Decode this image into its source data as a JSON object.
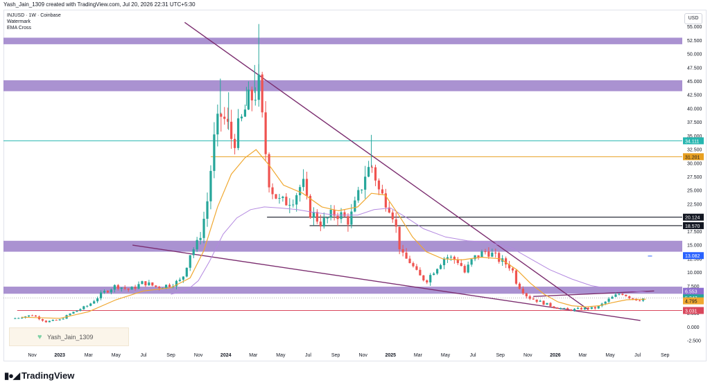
{
  "header": {
    "caption": "Yash_Jain_1309 created with TradingView.com, Jul 20, 2026 22:31 UTC+5:30"
  },
  "legend": {
    "symbol": "INJUSD · 1W · Coinbase",
    "line2": "Watermark",
    "line3": "EMA Cross"
  },
  "currency_button": "USD",
  "watermark": {
    "label": "Yash_Jain_1309",
    "icon": "green-heart-icon"
  },
  "footer": {
    "logo_icon": "tradingview-logo-icon",
    "brand": "TradingView"
  },
  "colors": {
    "zone": "#9b7fc9",
    "trendline": "#7b2d6f",
    "ema_fast": "#f0a830",
    "ema_slow": "#b388e0",
    "teal": "#26b6b0",
    "orange": "#e8a021",
    "support": "#d9475c",
    "up": "#26a69a",
    "down": "#ef5350"
  },
  "chart_data": {
    "type": "candlestick",
    "symbol": "INJUSD",
    "interval": "1W",
    "exchange": "Coinbase",
    "y_ticks": [
      "55.000",
      "52.500",
      "50.000",
      "47.500",
      "45.000",
      "42.500",
      "40.000",
      "37.500",
      "35.000",
      "32.500",
      "30.000",
      "27.500",
      "25.000",
      "22.500",
      "20.000",
      "17.500",
      "15.000",
      "12.500",
      "10.000",
      "7.500",
      "5.000",
      "2.500",
      "0.000",
      "-2.500"
    ],
    "y_range": [
      -3.5,
      58
    ],
    "x_labels": [
      {
        "label": "Nov",
        "t": 0.3
      },
      {
        "label": "2023",
        "t": 2.3
      },
      {
        "label": "Mar",
        "t": 4.4
      },
      {
        "label": "May",
        "t": 6.4
      },
      {
        "label": "Jul",
        "t": 8.4
      },
      {
        "label": "Sep",
        "t": 10.4
      },
      {
        "label": "Nov",
        "t": 12.4
      },
      {
        "label": "2024",
        "t": 14.4
      },
      {
        "label": "Mar",
        "t": 16.4
      },
      {
        "label": "May",
        "t": 18.4
      },
      {
        "label": "Jul",
        "t": 20.4
      },
      {
        "label": "Sep",
        "t": 22.4
      },
      {
        "label": "Nov",
        "t": 24.4
      },
      {
        "label": "2025",
        "t": 26.4
      },
      {
        "label": "Mar",
        "t": 28.4
      },
      {
        "label": "May",
        "t": 30.4
      },
      {
        "label": "Jul",
        "t": 32.4
      },
      {
        "label": "Sep",
        "t": 34.4
      },
      {
        "label": "Nov",
        "t": 36.4
      },
      {
        "label": "2026",
        "t": 38.4
      },
      {
        "label": "Mar",
        "t": 40.4
      },
      {
        "label": "May",
        "t": 42.4
      },
      {
        "label": "Jul",
        "t": 44.4
      },
      {
        "label": "Sep",
        "t": 46.4
      }
    ],
    "x_range": [
      -1.8,
      47.6
    ],
    "price_path": [
      {
        "t": -1.2,
        "v": 1.5
      },
      {
        "t": 0.3,
        "v": 2.2
      },
      {
        "t": 1.3,
        "v": 1.0
      },
      {
        "t": 2.3,
        "v": 1.3
      },
      {
        "t": 3.1,
        "v": 2.5
      },
      {
        "t": 4.4,
        "v": 4.0
      },
      {
        "t": 5.4,
        "v": 6.2
      },
      {
        "t": 6.4,
        "v": 7.6
      },
      {
        "t": 7.4,
        "v": 6.8
      },
      {
        "t": 8.4,
        "v": 8.2
      },
      {
        "t": 9.4,
        "v": 7.3
      },
      {
        "t": 10.4,
        "v": 7.8
      },
      {
        "t": 11.2,
        "v": 8.6
      },
      {
        "t": 11.8,
        "v": 13.5
      },
      {
        "t": 12.4,
        "v": 15.5
      },
      {
        "t": 13.0,
        "v": 22.0
      },
      {
        "t": 13.5,
        "v": 33.5
      },
      {
        "t": 14.0,
        "v": 39.0
      },
      {
        "t": 14.4,
        "v": 37.5
      },
      {
        "t": 14.9,
        "v": 34.0
      },
      {
        "t": 15.4,
        "v": 36.5
      },
      {
        "t": 15.9,
        "v": 40.5
      },
      {
        "t": 16.4,
        "v": 42.5
      },
      {
        "t": 16.8,
        "v": 44.0
      },
      {
        "t": 17.2,
        "v": 34.0
      },
      {
        "t": 17.6,
        "v": 26.0
      },
      {
        "t": 18.4,
        "v": 22.5
      },
      {
        "t": 19.4,
        "v": 24.0
      },
      {
        "t": 20.0,
        "v": 26.5
      },
      {
        "t": 20.4,
        "v": 21.5
      },
      {
        "t": 21.4,
        "v": 19.0
      },
      {
        "t": 22.4,
        "v": 21.0
      },
      {
        "t": 23.4,
        "v": 19.5
      },
      {
        "t": 24.0,
        "v": 23.5
      },
      {
        "t": 24.6,
        "v": 28.5
      },
      {
        "t": 25.1,
        "v": 29.5
      },
      {
        "t": 25.6,
        "v": 24.5
      },
      {
        "t": 26.2,
        "v": 23.0
      },
      {
        "t": 26.6,
        "v": 20.5
      },
      {
        "t": 27.2,
        "v": 13.0
      },
      {
        "t": 27.8,
        "v": 12.0
      },
      {
        "t": 28.4,
        "v": 9.5
      },
      {
        "t": 29.0,
        "v": 8.5
      },
      {
        "t": 29.6,
        "v": 10.5
      },
      {
        "t": 30.4,
        "v": 13.0
      },
      {
        "t": 31.4,
        "v": 12.0
      },
      {
        "t": 31.8,
        "v": 10.0
      },
      {
        "t": 32.4,
        "v": 12.5
      },
      {
        "t": 33.4,
        "v": 14.0
      },
      {
        "t": 34.4,
        "v": 12.2
      },
      {
        "t": 35.2,
        "v": 11.0
      },
      {
        "t": 35.6,
        "v": 8.0
      },
      {
        "t": 36.4,
        "v": 5.5
      },
      {
        "t": 37.4,
        "v": 4.5
      },
      {
        "t": 38.4,
        "v": 3.6
      },
      {
        "t": 39.4,
        "v": 3.1
      },
      {
        "t": 40.4,
        "v": 3.4
      },
      {
        "t": 41.4,
        "v": 3.5
      },
      {
        "t": 42.4,
        "v": 5.2
      },
      {
        "t": 43.2,
        "v": 6.3
      },
      {
        "t": 43.8,
        "v": 5.5
      },
      {
        "t": 44.4,
        "v": 5.0
      },
      {
        "t": 45.0,
        "v": 5.35
      }
    ],
    "spikes": [
      {
        "t": 16.8,
        "high": 55.5
      },
      {
        "t": 16.5,
        "high": 48.0
      },
      {
        "t": 14.0,
        "high": 45.5
      },
      {
        "t": 25.0,
        "high": 35.2
      },
      {
        "t": 14.6,
        "high": 43.0
      },
      {
        "t": 15.9,
        "high": 44.0
      }
    ],
    "ema_fast": [
      {
        "t": -0.5,
        "v": 1.8
      },
      {
        "t": 2.3,
        "v": 1.6
      },
      {
        "t": 4.4,
        "v": 2.8
      },
      {
        "t": 6.4,
        "v": 5.0
      },
      {
        "t": 8.4,
        "v": 6.6
      },
      {
        "t": 10.4,
        "v": 7.2
      },
      {
        "t": 11.8,
        "v": 9.0
      },
      {
        "t": 12.8,
        "v": 14.0
      },
      {
        "t": 13.8,
        "v": 22.0
      },
      {
        "t": 14.8,
        "v": 28.0
      },
      {
        "t": 15.8,
        "v": 31.0
      },
      {
        "t": 16.6,
        "v": 32.5
      },
      {
        "t": 17.6,
        "v": 29.5
      },
      {
        "t": 18.6,
        "v": 26.0
      },
      {
        "t": 20.0,
        "v": 24.5
      },
      {
        "t": 21.4,
        "v": 22.0
      },
      {
        "t": 22.6,
        "v": 21.3
      },
      {
        "t": 24.0,
        "v": 22.0
      },
      {
        "t": 25.0,
        "v": 24.5
      },
      {
        "t": 26.0,
        "v": 24.2
      },
      {
        "t": 27.0,
        "v": 20.5
      },
      {
        "t": 28.0,
        "v": 16.5
      },
      {
        "t": 29.0,
        "v": 13.8
      },
      {
        "t": 30.2,
        "v": 12.5
      },
      {
        "t": 31.6,
        "v": 12.3
      },
      {
        "t": 33.0,
        "v": 12.8
      },
      {
        "t": 34.4,
        "v": 12.5
      },
      {
        "t": 35.6,
        "v": 10.5
      },
      {
        "t": 36.6,
        "v": 8.0
      },
      {
        "t": 37.6,
        "v": 6.0
      },
      {
        "t": 38.6,
        "v": 4.6
      },
      {
        "t": 39.6,
        "v": 3.9
      },
      {
        "t": 40.6,
        "v": 3.7
      },
      {
        "t": 41.6,
        "v": 3.9
      },
      {
        "t": 42.6,
        "v": 4.5
      },
      {
        "t": 43.6,
        "v": 5.0
      },
      {
        "t": 45.0,
        "v": 5.1
      }
    ],
    "ema_slow": [
      {
        "t": 10.4,
        "v": 6.0
      },
      {
        "t": 11.6,
        "v": 6.8
      },
      {
        "t": 12.4,
        "v": 8.5
      },
      {
        "t": 13.2,
        "v": 12.0
      },
      {
        "t": 14.2,
        "v": 17.0
      },
      {
        "t": 15.2,
        "v": 20.0
      },
      {
        "t": 16.2,
        "v": 21.5
      },
      {
        "t": 17.2,
        "v": 22.0
      },
      {
        "t": 18.4,
        "v": 21.8
      },
      {
        "t": 19.6,
        "v": 21.5
      },
      {
        "t": 20.8,
        "v": 21.0
      },
      {
        "t": 22.4,
        "v": 20.5
      },
      {
        "t": 24.0,
        "v": 20.5
      },
      {
        "t": 25.2,
        "v": 21.5
      },
      {
        "t": 26.4,
        "v": 21.8
      },
      {
        "t": 27.6,
        "v": 20.0
      },
      {
        "t": 28.8,
        "v": 18.0
      },
      {
        "t": 30.4,
        "v": 16.5
      },
      {
        "t": 32.0,
        "v": 15.8
      },
      {
        "t": 33.6,
        "v": 15.5
      },
      {
        "t": 35.2,
        "v": 14.5
      },
      {
        "t": 36.6,
        "v": 12.5
      },
      {
        "t": 38.0,
        "v": 10.5
      },
      {
        "t": 39.6,
        "v": 8.8
      },
      {
        "t": 41.0,
        "v": 7.6
      },
      {
        "t": 42.4,
        "v": 7.0
      },
      {
        "t": 43.8,
        "v": 6.6
      },
      {
        "t": 45.0,
        "v": 6.4
      }
    ],
    "zones": [
      {
        "from": 51.8,
        "to": 53.0
      },
      {
        "from": 43.2,
        "to": 45.2
      },
      {
        "from": 13.8,
        "to": 15.8
      },
      {
        "from": 6.1,
        "to": 7.4
      }
    ],
    "trendlines": [
      {
        "t1": 11.4,
        "v1": 55.8,
        "t2": 40.8,
        "v2": 3.2
      },
      {
        "t1": 7.6,
        "v1": 15.0,
        "t2": 44.6,
        "v2": 1.2
      },
      {
        "t1": 36.8,
        "v1": 5.6,
        "t2": 45.6,
        "v2": 6.6
      }
    ],
    "hlines": [
      {
        "value": 34.111,
        "label": "34.111",
        "color": "#26b6b0",
        "t1": -1.8,
        "t2": 47.6
      },
      {
        "value": 31.201,
        "label": "31.201",
        "color": "#e8a021",
        "t1": 13.3,
        "t2": 47.6
      },
      {
        "value": 20.124,
        "label": "20.124",
        "color": "#131722",
        "t1": 17.4,
        "t2": 47.6
      },
      {
        "value": 18.57,
        "label": "18.570",
        "color": "#131722",
        "t1": 20.5,
        "t2": 47.6
      },
      {
        "value": 3.031,
        "label": "3.031",
        "color": "#d9475c",
        "t1": -0.8,
        "t2": 47.6
      }
    ],
    "price_labels": [
      {
        "value": 34.111,
        "label": "34.111",
        "bg": "#26b6b0",
        "fg": "#ffffff"
      },
      {
        "value": 31.201,
        "label": "31.201",
        "bg": "#e8a021",
        "fg": "#131722"
      },
      {
        "value": 20.124,
        "label": "20.124",
        "bg": "#131722",
        "fg": "#ffffff"
      },
      {
        "value": 18.57,
        "label": "18.570",
        "bg": "#131722",
        "fg": "#ffffff"
      },
      {
        "value": 13.082,
        "label": "13.082",
        "bg": "#2962ff",
        "fg": "#ffffff"
      },
      {
        "value": 6.553,
        "label": "6.553",
        "bg": "#8e6fd0",
        "fg": "#ffffff"
      },
      {
        "value": 5.347,
        "label": "5.347",
        "bg": "#26a69a",
        "fg": "#ffffff"
      },
      {
        "value": 4.795,
        "label": "4.795",
        "bg": "#f0a830",
        "fg": "#131722"
      },
      {
        "value": 3.031,
        "label": "3.031",
        "bg": "#d9475c",
        "fg": "#ffffff"
      }
    ],
    "small_marker": {
      "t": 45.3,
      "v": 13.0
    },
    "grid": false,
    "legend_position": "top-left"
  }
}
